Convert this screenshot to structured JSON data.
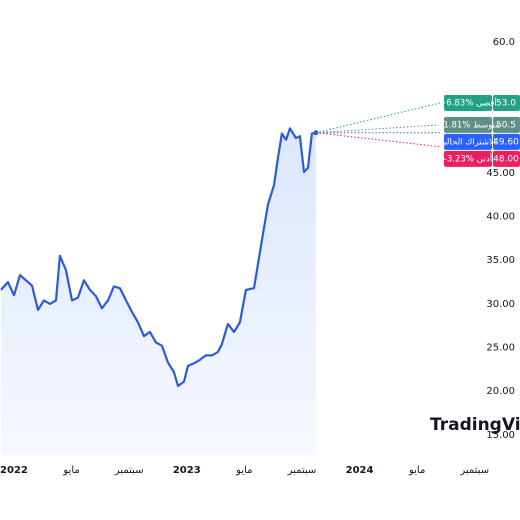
{
  "chart_data": {
    "type": "line",
    "x": [
      -0.9,
      -0.42,
      0,
      0.42,
      0.83,
      1.25,
      1.67,
      2.08,
      2.5,
      2.92,
      3.19,
      3.61,
      4.03,
      4.44,
      4.86,
      5.28,
      5.69,
      6.11,
      6.53,
      6.94,
      7.36,
      7.78,
      8.19,
      8.61,
      9.03,
      9.44,
      9.86,
      10.28,
      10.69,
      11.11,
      11.39,
      11.81,
      12.08,
      12.5,
      12.92,
      13.33,
      13.75,
      14.17,
      14.44,
      14.86,
      15.28,
      15.69,
      16.11,
      16.67,
      17.22,
      17.64,
      18.06,
      18.33,
      18.61,
      18.89,
      19.17,
      19.58,
      19.86,
      20.14,
      20.42,
      20.69,
      20.97
    ],
    "values": [
      31.6,
      32.5,
      31.0,
      33.3,
      32.7,
      32.1,
      29.3,
      30.4,
      30.0,
      30.4,
      35.5,
      33.9,
      30.4,
      30.7,
      32.7,
      31.6,
      30.9,
      29.5,
      30.4,
      32.0,
      31.8,
      30.4,
      29.1,
      27.9,
      26.3,
      26.8,
      25.6,
      25.2,
      23.3,
      22.2,
      20.6,
      21.1,
      22.9,
      23.2,
      23.6,
      24.1,
      24.1,
      24.5,
      25.4,
      27.7,
      26.8,
      27.9,
      31.6,
      31.8,
      37.3,
      41.4,
      43.6,
      46.7,
      49.5,
      48.8,
      50.1,
      49.0,
      49.2,
      45.1,
      45.6,
      49.5,
      49.6
    ],
    "color": "#2b5bd7",
    "xlim": [
      -0.97,
      33.06
    ],
    "ylim": [
      12.7,
      64.8
    ],
    "xticks": [
      {
        "value": 0,
        "label": "2022"
      },
      {
        "value": 4,
        "label": "مايو"
      },
      {
        "value": 8,
        "label": "سبتمبر"
      },
      {
        "value": 12,
        "label": "2023"
      },
      {
        "value": 16,
        "label": "مايو"
      },
      {
        "value": 20,
        "label": "سبتمبر"
      },
      {
        "value": 24,
        "label": "2024"
      },
      {
        "value": 28,
        "label": "مايو"
      },
      {
        "value": 32,
        "label": "سبتمبر"
      }
    ],
    "yticks": [
      {
        "value": 60,
        "label": "60.0"
      },
      {
        "value": 45,
        "label": "45.00"
      },
      {
        "value": 40,
        "label": "40.00"
      },
      {
        "value": 35,
        "label": "35.00"
      },
      {
        "value": 30,
        "label": "30.00"
      },
      {
        "value": 25,
        "label": "25.00"
      },
      {
        "value": 20,
        "label": "20.00"
      },
      {
        "value": 15,
        "label": "15.00"
      }
    ],
    "forecast": [
      {
        "name": "+6.83% أقصى",
        "value": 53,
        "value_label": "53.0",
        "color": "#22a184"
      },
      {
        "name": "+1.81% متوسط",
        "value": 50.5,
        "value_label": "50.5",
        "color": "#5f8f86"
      },
      {
        "name": "الاشتراك الحالي",
        "value": 49.6,
        "value_label": "49.60",
        "color": "#2962ff"
      },
      {
        "name": "-3.23% أدنى",
        "value": 48,
        "value_label": "48.00",
        "color": "#e91e63"
      }
    ],
    "watermark": "TradingView"
  }
}
